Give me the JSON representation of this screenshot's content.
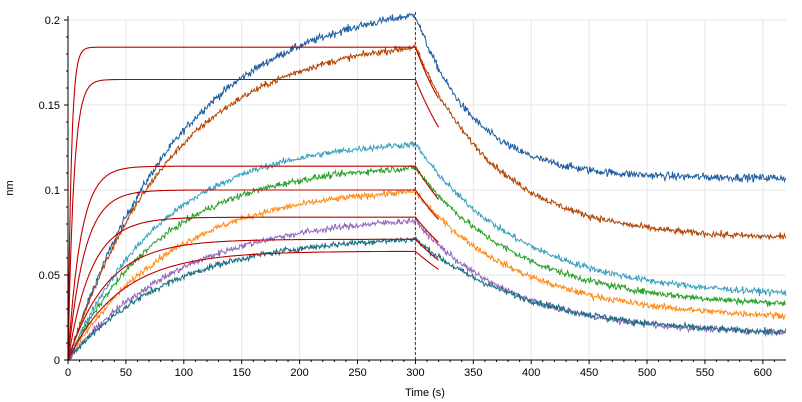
{
  "chart_data": {
    "type": "line",
    "title": "",
    "xlabel": "Time (s)",
    "ylabel": "nm",
    "xlim": [
      0,
      620
    ],
    "ylim": [
      0,
      0.2
    ],
    "xticks": [
      0,
      50,
      100,
      150,
      200,
      250,
      300,
      350,
      400,
      450,
      500,
      550,
      600
    ],
    "yticks": [
      0,
      0.05,
      0.1,
      0.15,
      0.2
    ],
    "ytick_labels": [
      "0",
      "0.05",
      "0.1",
      "0.15",
      "0.2"
    ],
    "grid": true,
    "association_end": 300,
    "marker_color": "#cc0000",
    "fit_color": "#c00000",
    "series": [
      {
        "name": "blue",
        "color": "#1f5fa0",
        "plateau": 0.203,
        "ka": 0.01,
        "offset": 0.107,
        "kd": 0.02,
        "noise": 0.0022
      },
      {
        "name": "brown",
        "color": "#b34400",
        "plateau": 0.184,
        "ka": 0.011,
        "offset": 0.071,
        "kd": 0.014,
        "noise": 0.0018
      },
      {
        "name": "teal",
        "color": "#3aa1c0",
        "plateau": 0.127,
        "ka": 0.012,
        "offset": 0.037,
        "kd": 0.011,
        "noise": 0.0018
      },
      {
        "name": "green",
        "color": "#2ca02c",
        "plateau": 0.113,
        "ka": 0.012,
        "offset": 0.031,
        "kd": 0.011,
        "noise": 0.0018
      },
      {
        "name": "orange",
        "color": "#ff8c1a",
        "plateau": 0.099,
        "ka": 0.011,
        "offset": 0.024,
        "kd": 0.011,
        "noise": 0.0018
      },
      {
        "name": "purple",
        "color": "#9467bd",
        "plateau": 0.082,
        "ka": 0.01,
        "offset": 0.015,
        "kd": 0.012,
        "noise": 0.0018
      },
      {
        "name": "darkteal",
        "color": "#1a6e80",
        "plateau": 0.071,
        "ka": 0.011,
        "offset": 0.014,
        "kd": 0.01,
        "noise": 0.0018
      }
    ],
    "fits": [
      {
        "plateau": 0.184,
        "k": 0.35,
        "offset": 0.105,
        "kd": 0.024
      },
      {
        "plateau": 0.165,
        "k": 0.2,
        "offset": 0.072,
        "kd": 0.018
      },
      {
        "plateau": 0.114,
        "k": 0.09,
        "offset": 0.034,
        "kd": 0.014
      },
      {
        "plateau": 0.1,
        "k": 0.07,
        "offset": 0.029,
        "kd": 0.014
      },
      {
        "plateau": 0.084,
        "k": 0.05,
        "offset": 0.023,
        "kd": 0.014
      },
      {
        "plateau": 0.071,
        "k": 0.03,
        "offset": 0.017,
        "kd": 0.013
      },
      {
        "plateau": 0.064,
        "k": 0.022,
        "offset": 0.014,
        "kd": 0.012
      }
    ]
  }
}
